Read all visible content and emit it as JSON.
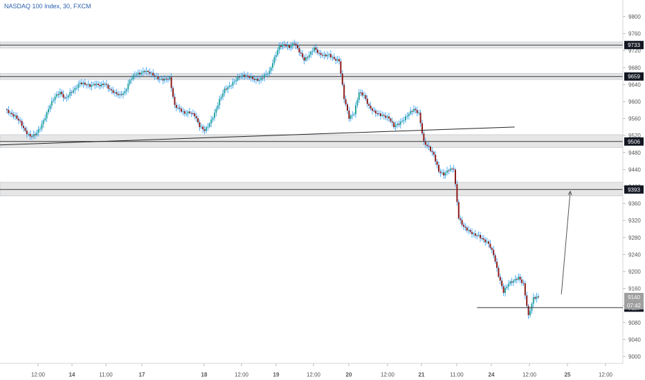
{
  "chart_data": {
    "type": "candlestick",
    "title": "NASDAQ 100 Index, 30, FXCM",
    "y_ticks": [
      9000,
      9040,
      9080,
      9120,
      9160,
      9200,
      9240,
      9280,
      9320,
      9360,
      9400,
      9440,
      9480,
      9520,
      9560,
      9600,
      9640,
      9680,
      9720,
      9760,
      9800
    ],
    "ylim": [
      8990,
      9830
    ],
    "x_ticks": [
      "12:00",
      "14",
      "11:00",
      "17",
      "18",
      "12:00",
      "19",
      "12:00",
      "20",
      "12:00",
      "21",
      "11:00",
      "24",
      "12:00",
      "25",
      "12:00"
    ],
    "price_labels": [
      {
        "value": 9733,
        "label": "9733",
        "style": "dark"
      },
      {
        "value": 9659,
        "label": "9659",
        "style": "dark"
      },
      {
        "value": 9506,
        "label": "9506",
        "style": "dark"
      },
      {
        "value": 9393,
        "label": "9393",
        "style": "dark"
      },
      {
        "value": 9140,
        "label": "9140",
        "style": "grey"
      },
      {
        "value": 9115,
        "label": "9115",
        "style": "dark"
      }
    ],
    "countdown": "07:42",
    "zones": [
      {
        "from": 9726,
        "to": 9740
      },
      {
        "from": 9652,
        "to": 9666
      },
      {
        "from": 9492,
        "to": 9522
      },
      {
        "from": 9378,
        "to": 9410
      }
    ],
    "close_path": [
      [
        0,
        9582
      ],
      [
        1,
        9572
      ],
      [
        2,
        9565
      ],
      [
        3,
        9552
      ],
      [
        4,
        9530
      ],
      [
        5,
        9518
      ],
      [
        6,
        9522
      ],
      [
        7,
        9538
      ],
      [
        8,
        9563
      ],
      [
        9,
        9592
      ],
      [
        10,
        9612
      ],
      [
        11,
        9622
      ],
      [
        12,
        9606
      ],
      [
        13,
        9620
      ],
      [
        14,
        9630
      ],
      [
        15,
        9644
      ],
      [
        16,
        9641
      ],
      [
        17,
        9637
      ],
      [
        18,
        9641
      ],
      [
        19,
        9638
      ],
      [
        20,
        9642
      ],
      [
        21,
        9628
      ],
      [
        22,
        9620
      ],
      [
        23,
        9615
      ],
      [
        24,
        9622
      ],
      [
        25,
        9650
      ],
      [
        26,
        9664
      ],
      [
        27,
        9666
      ],
      [
        28,
        9672
      ],
      [
        29,
        9668
      ],
      [
        30,
        9660
      ],
      [
        31,
        9652
      ],
      [
        32,
        9652
      ],
      [
        33,
        9655
      ],
      [
        34,
        9590
      ],
      [
        35,
        9582
      ],
      [
        36,
        9572
      ],
      [
        37,
        9575
      ],
      [
        38,
        9568
      ],
      [
        39,
        9542
      ],
      [
        40,
        9532
      ],
      [
        41,
        9548
      ],
      [
        42,
        9572
      ],
      [
        43,
        9604
      ],
      [
        44,
        9628
      ],
      [
        45,
        9636
      ],
      [
        46,
        9648
      ],
      [
        47,
        9660
      ],
      [
        48,
        9661
      ],
      [
        49,
        9658
      ],
      [
        50,
        9652
      ],
      [
        51,
        9650
      ],
      [
        52,
        9662
      ],
      [
        53,
        9670
      ],
      [
        54,
        9702
      ],
      [
        55,
        9730
      ],
      [
        56,
        9734
      ],
      [
        57,
        9728
      ],
      [
        58,
        9738
      ],
      [
        59,
        9718
      ],
      [
        60,
        9698
      ],
      [
        61,
        9710
      ],
      [
        62,
        9726
      ],
      [
        63,
        9712
      ],
      [
        64,
        9708
      ],
      [
        65,
        9710
      ],
      [
        66,
        9700
      ],
      [
        67,
        9696
      ],
      [
        68,
        9608
      ],
      [
        69,
        9562
      ],
      [
        70,
        9572
      ],
      [
        71,
        9622
      ],
      [
        72,
        9614
      ],
      [
        73,
        9588
      ],
      [
        74,
        9576
      ],
      [
        75,
        9570
      ],
      [
        76,
        9566
      ],
      [
        77,
        9561
      ],
      [
        78,
        9542
      ],
      [
        79,
        9548
      ],
      [
        80,
        9558
      ],
      [
        81,
        9572
      ],
      [
        82,
        9582
      ],
      [
        83,
        9572
      ],
      [
        84,
        9504
      ],
      [
        85,
        9492
      ],
      [
        86,
        9474
      ],
      [
        87,
        9436
      ],
      [
        88,
        9428
      ],
      [
        89,
        9440
      ],
      [
        90,
        9442
      ],
      [
        91,
        9326
      ],
      [
        92,
        9305
      ],
      [
        93,
        9296
      ],
      [
        94,
        9287
      ],
      [
        95,
        9284
      ],
      [
        96,
        9274
      ],
      [
        97,
        9266
      ],
      [
        98,
        9240
      ],
      [
        99,
        9190
      ],
      [
        100,
        9152
      ],
      [
        101,
        9172
      ],
      [
        102,
        9178
      ],
      [
        103,
        9186
      ],
      [
        104,
        9170
      ],
      [
        105,
        9095
      ],
      [
        106,
        9138
      ],
      [
        107,
        9140
      ]
    ],
    "annotations": [
      {
        "type": "trendline",
        "from": [
          0,
          9498
        ],
        "to": [
          88,
          9540
        ]
      },
      {
        "type": "horizontal_segment",
        "value": 9115,
        "from_index": 86,
        "to_end": true
      },
      {
        "type": "arrow",
        "from": [
          106,
          9140
        ],
        "to": [
          110,
          9392
        ]
      }
    ],
    "colors": {
      "up": "#26a69a",
      "down": "#8b1a1a",
      "wick": "#2196f3",
      "axis_text": "#555555",
      "title": "#2a5fb0"
    }
  }
}
